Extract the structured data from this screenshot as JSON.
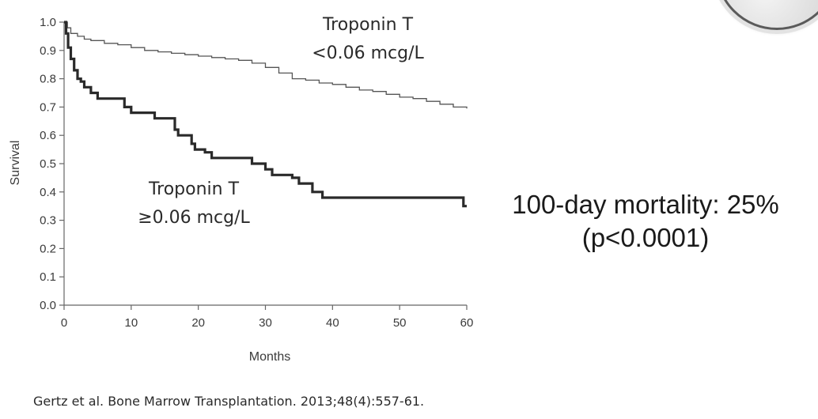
{
  "chart_data": {
    "type": "line",
    "xlabel": "Months",
    "ylabel": "Survival",
    "xlim": [
      0,
      60
    ],
    "ylim": [
      0.0,
      1.0
    ],
    "x_ticks": [
      "0",
      "10",
      "20",
      "30",
      "40",
      "50",
      "60"
    ],
    "y_ticks": [
      "0.0",
      "0.1",
      "0.2",
      "0.3",
      "0.4",
      "0.5",
      "0.6",
      "0.7",
      "0.8",
      "0.9",
      "1.0"
    ],
    "grid": false,
    "series": [
      {
        "name": "Troponin T <0.06 mcg/L",
        "label_line1": "Troponin T",
        "label_line2": "<0.06 mcg/L",
        "color": "#555555",
        "points": [
          [
            0,
            1.0
          ],
          [
            0.5,
            0.98
          ],
          [
            1,
            0.96
          ],
          [
            2,
            0.95
          ],
          [
            3,
            0.94
          ],
          [
            4,
            0.935
          ],
          [
            6,
            0.925
          ],
          [
            8,
            0.92
          ],
          [
            10,
            0.91
          ],
          [
            12,
            0.9
          ],
          [
            14,
            0.895
          ],
          [
            16,
            0.89
          ],
          [
            18,
            0.885
          ],
          [
            20,
            0.88
          ],
          [
            22,
            0.875
          ],
          [
            24,
            0.87
          ],
          [
            26,
            0.865
          ],
          [
            28,
            0.855
          ],
          [
            30,
            0.84
          ],
          [
            32,
            0.82
          ],
          [
            34,
            0.8
          ],
          [
            36,
            0.795
          ],
          [
            38,
            0.785
          ],
          [
            40,
            0.78
          ],
          [
            42,
            0.77
          ],
          [
            44,
            0.76
          ],
          [
            46,
            0.755
          ],
          [
            48,
            0.745
          ],
          [
            50,
            0.735
          ],
          [
            52,
            0.73
          ],
          [
            54,
            0.72
          ],
          [
            56,
            0.71
          ],
          [
            58,
            0.7
          ],
          [
            60,
            0.695
          ]
        ]
      },
      {
        "name": "Troponin T ≥0.06 mcg/L",
        "label_line1": "Troponin T",
        "label_line2": "≥0.06 mcg/L",
        "color": "#2a2a2a",
        "points": [
          [
            0,
            1.0
          ],
          [
            0.3,
            0.96
          ],
          [
            0.6,
            0.91
          ],
          [
            1,
            0.87
          ],
          [
            1.5,
            0.83
          ],
          [
            2,
            0.8
          ],
          [
            2.5,
            0.79
          ],
          [
            3,
            0.77
          ],
          [
            4,
            0.75
          ],
          [
            5,
            0.73
          ],
          [
            8,
            0.73
          ],
          [
            9,
            0.7
          ],
          [
            10,
            0.68
          ],
          [
            13,
            0.68
          ],
          [
            13.5,
            0.66
          ],
          [
            16,
            0.66
          ],
          [
            16.5,
            0.62
          ],
          [
            17,
            0.6
          ],
          [
            19,
            0.57
          ],
          [
            19.5,
            0.55
          ],
          [
            21,
            0.54
          ],
          [
            22,
            0.52
          ],
          [
            27,
            0.52
          ],
          [
            28,
            0.5
          ],
          [
            30,
            0.48
          ],
          [
            31,
            0.46
          ],
          [
            34,
            0.45
          ],
          [
            35,
            0.43
          ],
          [
            37,
            0.4
          ],
          [
            38.5,
            0.38
          ],
          [
            52,
            0.38
          ],
          [
            59,
            0.38
          ],
          [
            59.5,
            0.35
          ],
          [
            60,
            0.35
          ]
        ]
      }
    ]
  },
  "annotations": {
    "mortality": "100-day mortality: 25%",
    "p_value": "(p<0.0001)"
  },
  "citation": "Gertz et al. Bone Marrow Transplantation. 2013;48(4):557-61."
}
